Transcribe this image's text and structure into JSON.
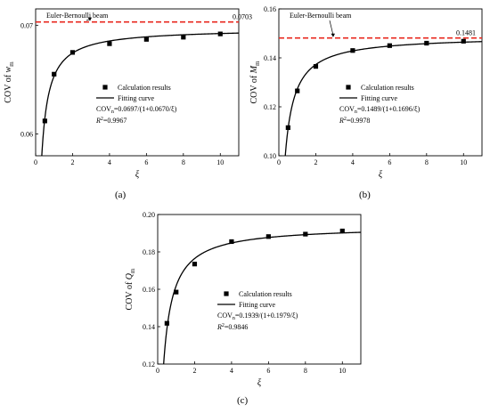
{
  "chart_data": [
    {
      "type": "scatter",
      "id": "a",
      "caption": "(a)",
      "xlabel_symbol": "ξ",
      "ylabel_prefix": "COV of ",
      "ylabel_var": "w",
      "ylabel_sub": "m",
      "xlim": [
        0,
        11
      ],
      "ylim": [
        0.058,
        0.0715
      ],
      "x_ticks": [
        0,
        2,
        4,
        6,
        8,
        10
      ],
      "y_ticks": [
        0.06,
        0.07
      ],
      "y_tick_labels": [
        "0.06",
        "0.07"
      ],
      "ref_line": {
        "label": "Euler-Bernoulli beam",
        "value": 0.0703,
        "value_label": "0.0703",
        "color": "#e8271e"
      },
      "points": {
        "x": [
          0.5,
          1,
          2,
          4,
          6,
          8,
          10
        ],
        "y": [
          0.0612,
          0.0655,
          0.0675,
          0.0683,
          0.0687,
          0.0689,
          0.0692
        ]
      },
      "fit": {
        "a": 0.0697,
        "b": 0.067
      },
      "legend": {
        "points_label": "Calculation results",
        "fit_label": "Fitting curve",
        "eq_prefix": "COV",
        "eq_sub": "n",
        "eq_body": "=0.0697/(1+0.0670/ξ)",
        "r2_label": "R",
        "r2_value": "=0.9967"
      }
    },
    {
      "type": "scatter",
      "id": "b",
      "caption": "(b)",
      "xlabel_symbol": "ξ",
      "ylabel_prefix": "COV of ",
      "ylabel_var": "M",
      "ylabel_sub": "m",
      "xlim": [
        0,
        11
      ],
      "ylim": [
        0.1,
        0.16
      ],
      "x_ticks": [
        0,
        2,
        4,
        6,
        8,
        10
      ],
      "y_ticks": [
        0.1,
        0.12,
        0.14,
        0.16
      ],
      "y_tick_labels": [
        "0.10",
        "0.12",
        "0.14",
        "0.16"
      ],
      "ref_line": {
        "label": "Euler-Bernoulli beam",
        "value": 0.1481,
        "value_label": "0.1481",
        "color": "#e8271e"
      },
      "points": {
        "x": [
          0.5,
          1,
          2,
          4,
          6,
          8,
          10
        ],
        "y": [
          0.1115,
          0.1265,
          0.1365,
          0.143,
          0.145,
          0.146,
          0.1468
        ]
      },
      "fit": {
        "a": 0.1489,
        "b": 0.1696
      },
      "legend": {
        "points_label": "Calculation results",
        "fit_label": "Fitting curve",
        "eq_prefix": "COV",
        "eq_sub": "n",
        "eq_body": "=0.1489/(1+0.1696/ξ)",
        "r2_label": "R",
        "r2_value": "=0.9978"
      }
    },
    {
      "type": "scatter",
      "id": "c",
      "caption": "(c)",
      "xlabel_symbol": "ξ",
      "ylabel_prefix": "COV of ",
      "ylabel_var": "Q",
      "ylabel_sub": "m",
      "xlim": [
        0,
        11
      ],
      "ylim": [
        0.12,
        0.2
      ],
      "x_ticks": [
        0,
        2,
        4,
        6,
        8,
        10
      ],
      "y_ticks": [
        0.12,
        0.14,
        0.16,
        0.18,
        0.2
      ],
      "y_tick_labels": [
        "0.12",
        "0.14",
        "0.16",
        "0.18",
        "0.20"
      ],
      "ref_line": null,
      "points": {
        "x": [
          0.5,
          1,
          2,
          4,
          6,
          8,
          10
        ],
        "y": [
          0.1418,
          0.1585,
          0.1735,
          0.1855,
          0.1882,
          0.1895,
          0.1912
        ]
      },
      "fit": {
        "a": 0.1939,
        "b": 0.1979
      },
      "legend": {
        "points_label": "Calculation results",
        "fit_label": "Fitting curve",
        "eq_prefix": "COV",
        "eq_sub": "n",
        "eq_body": "=0.1939/(1+0.1979/ξ)",
        "r2_label": "R",
        "r2_value": "=0.9846"
      }
    }
  ]
}
